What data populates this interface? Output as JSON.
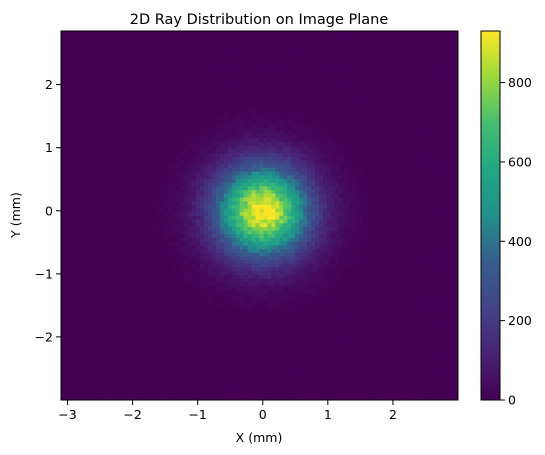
{
  "chart_data": {
    "type": "heatmap",
    "title": "2D Ray Distribution on Image Plane",
    "xlabel": "X (mm)",
    "ylabel": "Y (mm)",
    "xlim": [
      -3.1,
      3.0
    ],
    "ylim": [
      -3.0,
      2.85
    ],
    "xticks": [
      -3,
      -2,
      -1,
      0,
      1,
      2
    ],
    "yticks": [
      -2,
      -1,
      0,
      1,
      2
    ],
    "colorbar": {
      "colormap": "viridis",
      "range": [
        0,
        930
      ],
      "ticks": [
        0,
        200,
        400,
        600,
        800
      ]
    },
    "distribution": {
      "shape": "2D Gaussian",
      "center": [
        0.0,
        0.0
      ],
      "sigma_mm": 0.5,
      "peak_count": 930,
      "bins": 100
    },
    "grid": false,
    "colors": {
      "low": "#440154",
      "mid": "#21918c",
      "high": "#fde725"
    }
  }
}
